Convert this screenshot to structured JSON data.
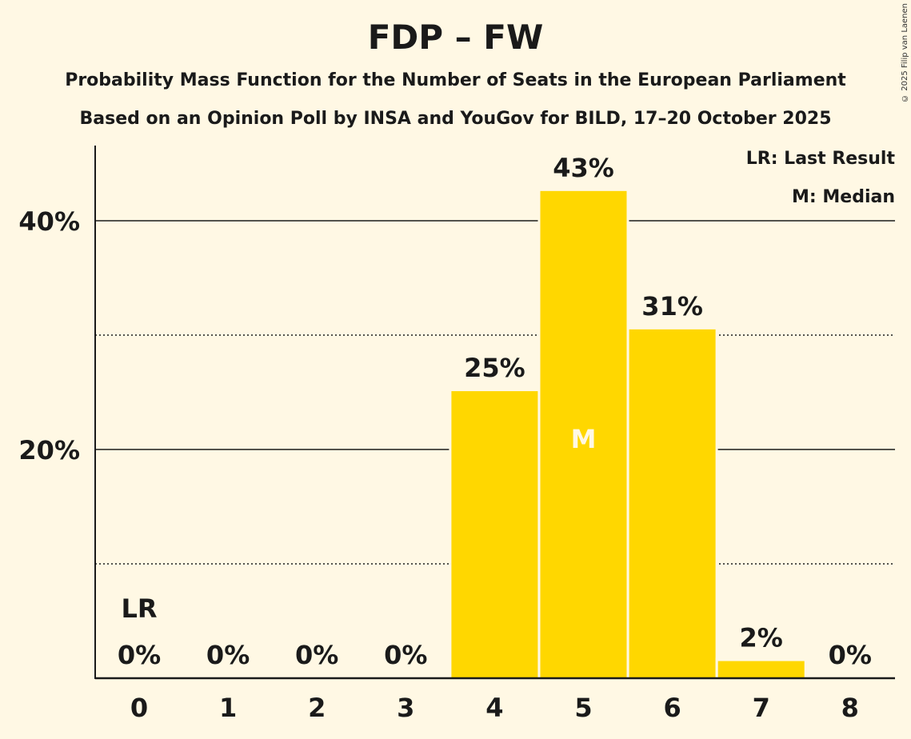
{
  "header": {
    "title": "FDP – FW",
    "subtitle1": "Probability Mass Function for the Number of Seats in the European Parliament",
    "subtitle2": "Based on an Opinion Poll by INSA and YouGov for BILD, 17–20 October 2025",
    "copyright": "© 2025 Filip van Laenen"
  },
  "legend": {
    "lr": "LR: Last Result",
    "m": "M: Median"
  },
  "colors": {
    "bar": "#FFD700",
    "background": "#FFF8E4",
    "text": "#1a1a1a"
  },
  "chart_data": {
    "type": "bar",
    "title": "FDP – FW",
    "xlabel": "",
    "ylabel": "",
    "categories": [
      "0",
      "1",
      "2",
      "3",
      "4",
      "5",
      "6",
      "7",
      "8"
    ],
    "values": [
      0,
      0,
      0,
      0,
      25.1,
      42.6,
      30.5,
      1.5,
      0
    ],
    "data_labels": [
      "0%",
      "0%",
      "0%",
      "0%",
      "25%",
      "43%",
      "31%",
      "2%",
      "0%"
    ],
    "ylim": [
      0,
      46
    ],
    "yticks": [
      20,
      40
    ],
    "ytick_labels": [
      "20%",
      "40%"
    ],
    "minor_gridlines": [
      10,
      30
    ],
    "last_result_index": 0,
    "last_result_label": "LR",
    "median_index": 5,
    "median_label": "M",
    "legend_position": "top-right",
    "grid": true
  }
}
